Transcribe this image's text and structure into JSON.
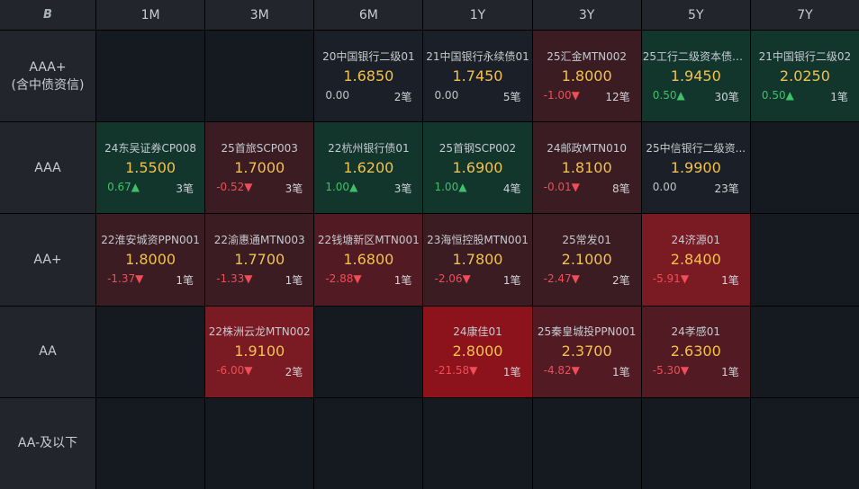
{
  "corner_label": "B",
  "columns": [
    "1M",
    "3M",
    "6M",
    "1Y",
    "3Y",
    "5Y",
    "7Y"
  ],
  "rows": [
    {
      "label_lines": [
        "AAA+",
        "(含中债资信)"
      ],
      "cells": [
        null,
        null,
        {
          "name": "20中国银行二级01",
          "yield": "1.6850",
          "change": "0.00",
          "dir": "flat",
          "count": "2笔",
          "tone": "neutral"
        },
        {
          "name": "21中国银行永续债01",
          "yield": "1.7450",
          "change": "0.00",
          "dir": "flat",
          "count": "5笔",
          "tone": "neutral"
        },
        {
          "name": "25汇金MTN002",
          "yield": "1.8000",
          "change": "-1.00▼",
          "dir": "down",
          "count": "12笔",
          "tone": "r1"
        },
        {
          "name": "25工行二级资本债0...",
          "yield": "1.9450",
          "change": "0.50▲",
          "dir": "up",
          "count": "30笔",
          "tone": "g1"
        },
        {
          "name": "21中国银行二级02",
          "yield": "2.0250",
          "change": "0.50▲",
          "dir": "up",
          "count": "1笔",
          "tone": "g1"
        }
      ]
    },
    {
      "label_lines": [
        "AAA"
      ],
      "cells": [
        {
          "name": "24东吴证券CP008",
          "yield": "1.5500",
          "change": "0.67▲",
          "dir": "up",
          "count": "3笔",
          "tone": "g1"
        },
        {
          "name": "25首旅SCP003",
          "yield": "1.7000",
          "change": "-0.52▼",
          "dir": "down",
          "count": "3笔",
          "tone": "r1"
        },
        {
          "name": "22杭州银行债01",
          "yield": "1.6200",
          "change": "1.00▲",
          "dir": "up",
          "count": "3笔",
          "tone": "g1"
        },
        {
          "name": "25首钢SCP002",
          "yield": "1.6900",
          "change": "1.00▲",
          "dir": "up",
          "count": "4笔",
          "tone": "g1"
        },
        {
          "name": "24邮政MTN010",
          "yield": "1.8100",
          "change": "-0.01▼",
          "dir": "down",
          "count": "8笔",
          "tone": "r1"
        },
        {
          "name": "25中信银行二级资...",
          "yield": "1.9900",
          "change": "0.00",
          "dir": "flat",
          "count": "23笔",
          "tone": "neutral"
        },
        null
      ]
    },
    {
      "label_lines": [
        "AA+"
      ],
      "cells": [
        {
          "name": "22淮安城资PPN001",
          "yield": "1.8000",
          "change": "-1.37▼",
          "dir": "down",
          "count": "1笔",
          "tone": "r1"
        },
        {
          "name": "22渝惠通MTN003",
          "yield": "1.7700",
          "change": "-1.33▼",
          "dir": "down",
          "count": "1笔",
          "tone": "r1"
        },
        {
          "name": "22钱塘新区MTN001",
          "yield": "1.6800",
          "change": "-2.88▼",
          "dir": "down",
          "count": "1笔",
          "tone": "r2"
        },
        {
          "name": "23海恒控股MTN001",
          "yield": "1.7800",
          "change": "-2.06▼",
          "dir": "down",
          "count": "1笔",
          "tone": "r1"
        },
        {
          "name": "25常发01",
          "yield": "2.1000",
          "change": "-2.47▼",
          "dir": "down",
          "count": "2笔",
          "tone": "r1"
        },
        {
          "name": "24济源01",
          "yield": "2.8400",
          "change": "-5.91▼",
          "dir": "down",
          "count": "1笔",
          "tone": "r3"
        },
        null
      ]
    },
    {
      "label_lines": [
        "AA"
      ],
      "cells": [
        null,
        {
          "name": "22株洲云龙MTN002",
          "yield": "1.9100",
          "change": "-6.00▼",
          "dir": "down",
          "count": "2笔",
          "tone": "r3"
        },
        null,
        {
          "name": "24康佳01",
          "yield": "2.8000",
          "change": "-21.58▼",
          "dir": "down",
          "count": "1笔",
          "tone": "r4"
        },
        {
          "name": "25秦皇城投PPN001",
          "yield": "2.3700",
          "change": "-4.82▼",
          "dir": "down",
          "count": "1笔",
          "tone": "r2"
        },
        {
          "name": "24孝感01",
          "yield": "2.6300",
          "change": "-5.30▼",
          "dir": "down",
          "count": "1笔",
          "tone": "r2"
        },
        null
      ]
    },
    {
      "label_lines": [
        "AA-及以下"
      ],
      "cells": [
        null,
        null,
        null,
        null,
        null,
        null,
        null
      ]
    }
  ]
}
